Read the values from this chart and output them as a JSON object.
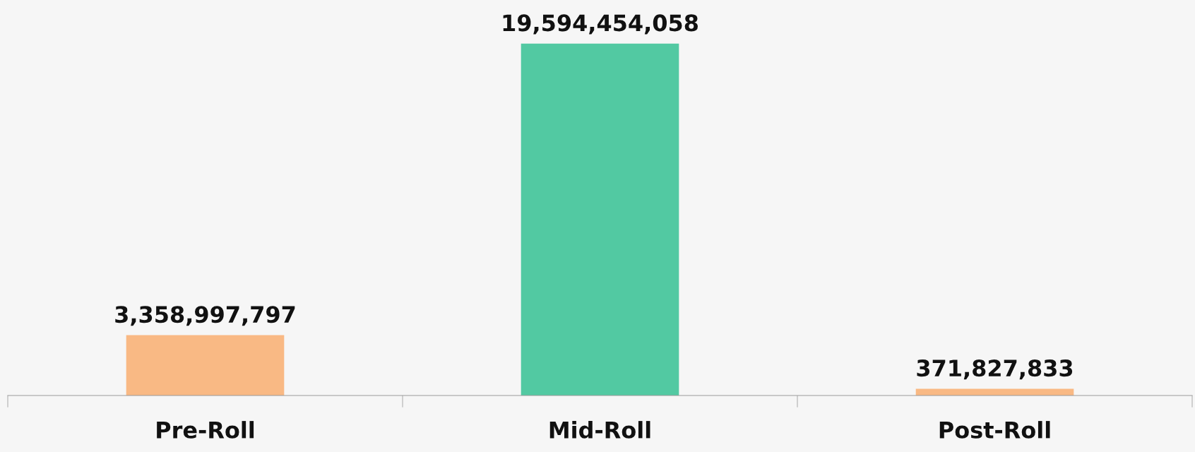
{
  "chart_data": {
    "type": "bar",
    "categories": [
      "Pre-Roll",
      "Mid-Roll",
      "Post-Roll"
    ],
    "values": [
      3358997797,
      19594454058,
      371827833
    ],
    "colors": [
      "#f9b984",
      "#52c9a2",
      "#f9b984"
    ],
    "data_labels": true,
    "value_labels": [
      "3,358,997,797",
      "19,594,454,058",
      "371,827,833"
    ],
    "grid": false,
    "legend": false
  }
}
